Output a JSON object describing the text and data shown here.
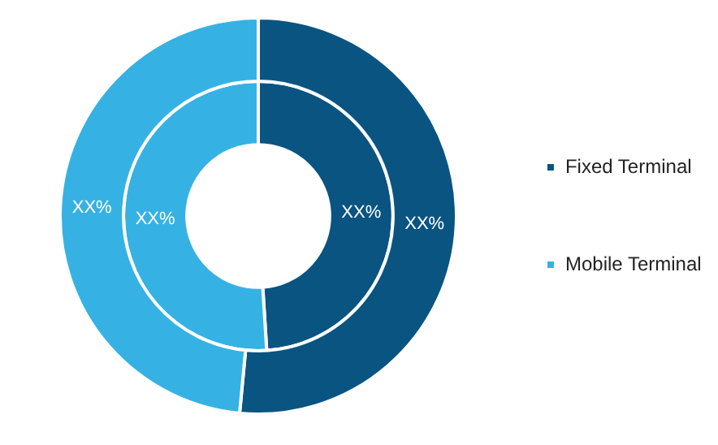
{
  "chart_data": {
    "type": "donut",
    "categories": [
      "Fixed Terminal",
      "Mobile Terminal"
    ],
    "series": [
      {
        "values": [
          51.5,
          48.5
        ],
        "colors": [
          "#0a5482",
          "#35b2e3"
        ],
        "value_labels": [
          "XX%",
          "XX%"
        ]
      },
      {
        "values": [
          49,
          51
        ],
        "colors": [
          "#0a5482",
          "#35b2e3"
        ],
        "value_labels": [
          "XX%",
          "XX%"
        ]
      }
    ],
    "legend": "right"
  }
}
